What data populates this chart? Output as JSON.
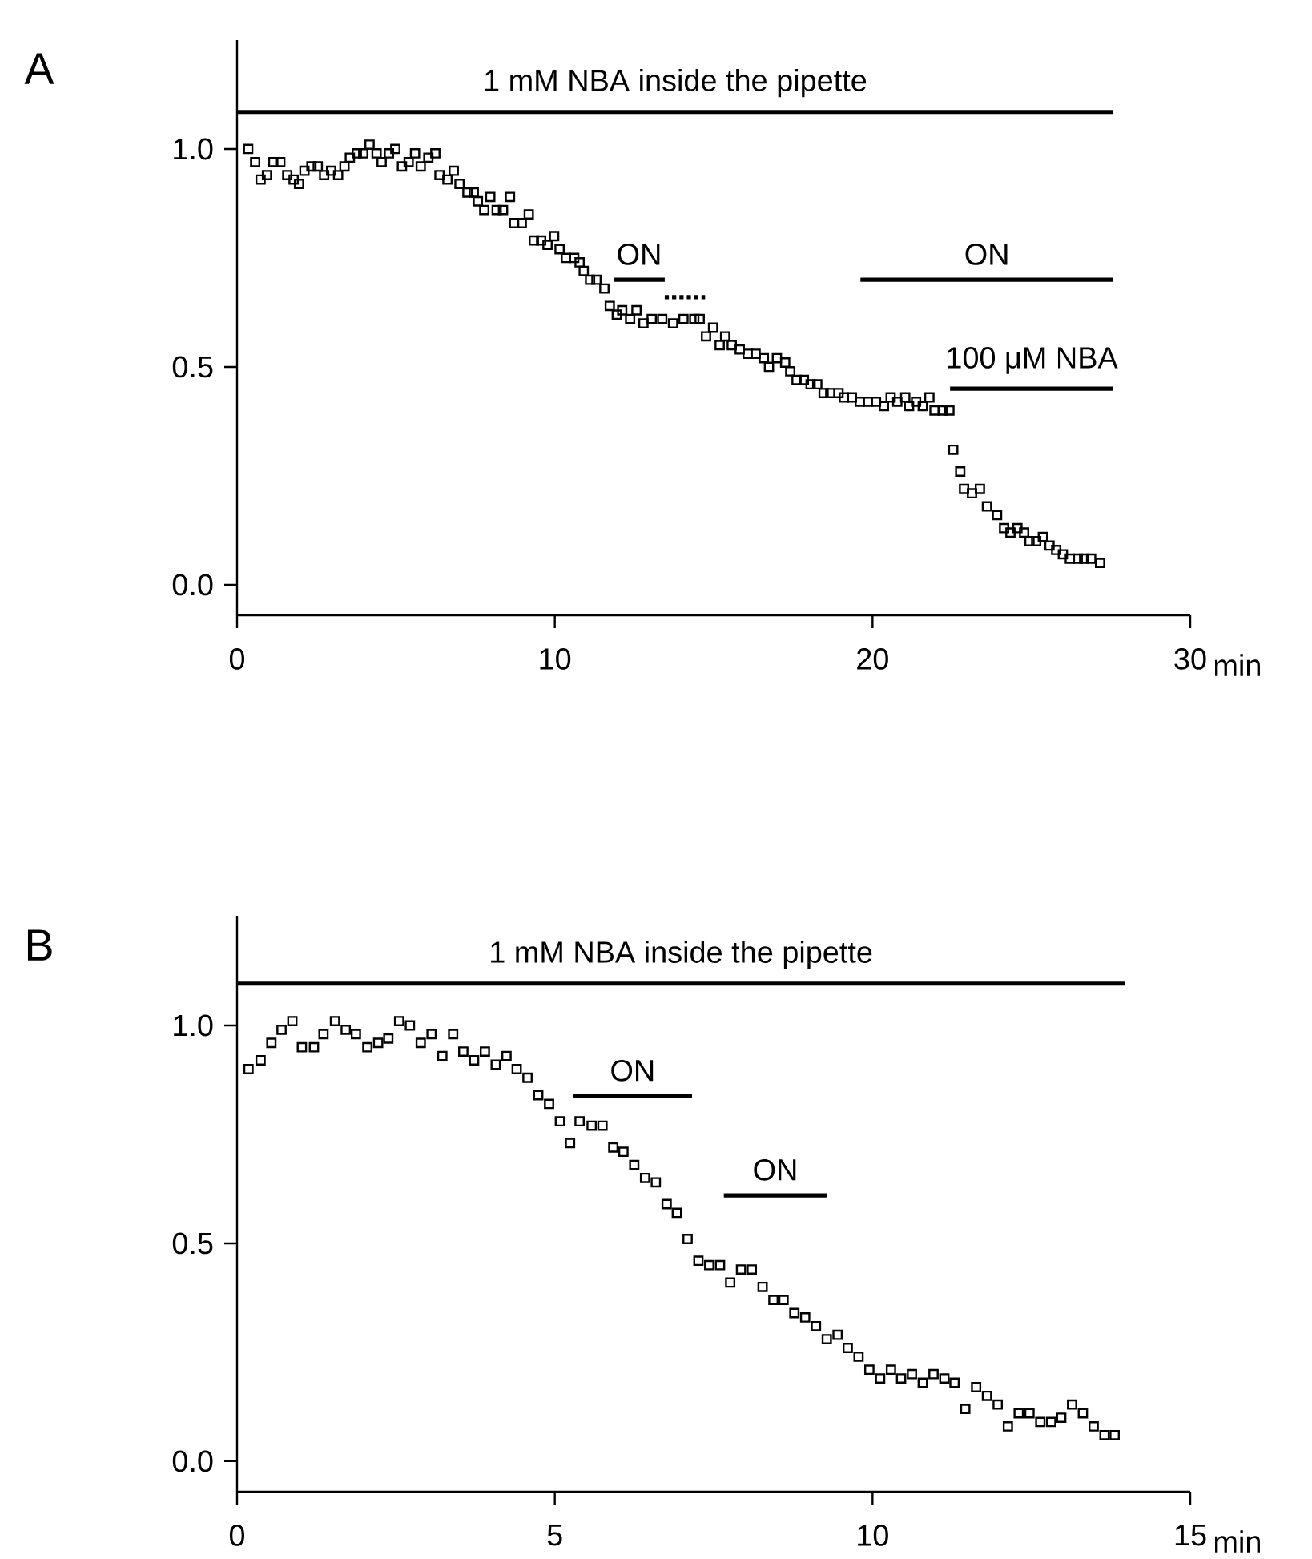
{
  "chart_data": [
    {
      "type": "scatter",
      "title": "A",
      "xlabel": "min",
      "marker": "square",
      "xlim": [
        0,
        30
      ],
      "ylim": [
        -0.07,
        1.25
      ],
      "xticks": [
        0,
        10,
        20,
        30
      ],
      "yticks": [
        {
          "value": 0,
          "label": "0.0"
        },
        {
          "value": 0.5,
          "label": "0.5"
        },
        {
          "value": 1,
          "label": "1.0"
        }
      ],
      "series": [
        {
          "color": "#000000",
          "x": [
            0.35,
            0.57,
            0.74,
            0.94,
            1.14,
            1.36,
            1.58,
            1.78,
            1.95,
            2.12,
            2.34,
            2.54,
            2.74,
            2.96,
            3.18,
            3.38,
            3.55,
            3.77,
            3.97,
            4.17,
            4.39,
            4.55,
            4.78,
            4.98,
            5.19,
            5.4,
            5.6,
            5.78,
            6.02,
            6.24,
            6.37,
            6.62,
            6.82,
            7.0,
            7.25,
            7.45,
            7.58,
            7.78,
            7.97,
            8.17,
            8.37,
            8.59,
            8.72,
            8.96,
            9.18,
            9.34,
            9.57,
            9.77,
            9.98,
            10.15,
            10.35,
            10.61,
            10.78,
            10.91,
            11.11,
            11.31,
            11.56,
            11.73,
            11.95,
            12.12,
            12.37,
            12.57,
            12.79,
            13.05,
            13.38,
            13.72,
            14.05,
            14.39,
            14.56,
            14.76,
            14.98,
            15.19,
            15.36,
            15.57,
            15.82,
            16.07,
            16.32,
            16.58,
            16.74,
            16.99,
            17.25,
            17.41,
            17.61,
            17.84,
            18.05,
            18.26,
            18.46,
            18.67,
            18.93,
            19.1,
            19.35,
            19.6,
            19.85,
            20.11,
            20.36,
            20.57,
            20.78,
            21.03,
            21.15,
            21.37,
            21.58,
            21.79,
            21.95,
            22.21,
            22.42,
            22.54,
            22.76,
            22.88,
            23.13,
            23.38,
            23.6,
            23.92,
            24.14,
            24.34,
            24.56,
            24.77,
            24.94,
            25.15,
            25.36,
            25.57,
            25.78,
            25.99,
            26.21,
            26.46,
            26.66,
            26.88,
            27.16
          ],
          "values": [
            1.0,
            0.97,
            0.93,
            0.94,
            0.97,
            0.97,
            0.94,
            0.93,
            0.92,
            0.95,
            0.96,
            0.96,
            0.94,
            0.95,
            0.94,
            0.96,
            0.98,
            0.99,
            0.99,
            1.01,
            0.99,
            0.97,
            0.99,
            1.0,
            0.96,
            0.97,
            0.99,
            0.96,
            0.98,
            0.99,
            0.94,
            0.93,
            0.95,
            0.92,
            0.9,
            0.9,
            0.88,
            0.86,
            0.89,
            0.86,
            0.86,
            0.89,
            0.83,
            0.83,
            0.85,
            0.79,
            0.79,
            0.78,
            0.8,
            0.77,
            0.75,
            0.75,
            0.74,
            0.72,
            0.7,
            0.7,
            0.68,
            0.64,
            0.62,
            0.63,
            0.61,
            0.63,
            0.6,
            0.61,
            0.61,
            0.6,
            0.61,
            0.61,
            0.61,
            0.57,
            0.59,
            0.55,
            0.57,
            0.55,
            0.54,
            0.53,
            0.53,
            0.52,
            0.5,
            0.52,
            0.51,
            0.49,
            0.47,
            0.47,
            0.46,
            0.46,
            0.44,
            0.44,
            0.44,
            0.43,
            0.43,
            0.42,
            0.42,
            0.42,
            0.41,
            0.43,
            0.42,
            0.43,
            0.41,
            0.42,
            0.41,
            0.43,
            0.4,
            0.4,
            0.4,
            0.31,
            0.26,
            0.22,
            0.21,
            0.22,
            0.18,
            0.16,
            0.13,
            0.12,
            0.13,
            0.12,
            0.1,
            0.1,
            0.11,
            0.09,
            0.08,
            0.07,
            0.06,
            0.06,
            0.06,
            0.06,
            0.05
          ]
        },
        {
          "type": "line",
          "name": "1 mM NBA inside the pipette",
          "color": "#000000",
          "marker": "none",
          "x": [
            0,
            27.58
          ],
          "values": [
            1.085,
            1.085
          ]
        },
        {
          "type": "line",
          "name": "ON",
          "color": "#000000",
          "marker": "none",
          "x": [
            11.85,
            13.46
          ],
          "values": [
            0.7,
            0.7
          ]
        },
        {
          "type": "line",
          "color": "#000000",
          "marker": "none",
          "line_style": "dotted",
          "x": [
            13.46,
            14.73
          ],
          "values": [
            0.66,
            0.66
          ]
        },
        {
          "type": "line",
          "name": "ON",
          "color": "#000000",
          "marker": "none",
          "x": [
            19.62,
            27.58
          ],
          "values": [
            0.7,
            0.7
          ]
        },
        {
          "type": "line",
          "name": "100 μM NBA",
          "color": "#000000",
          "marker": "none",
          "x": [
            22.44,
            27.58
          ],
          "values": [
            0.45,
            0.45
          ]
        }
      ]
    },
    {
      "type": "scatter",
      "title": "B",
      "xlabel": "min",
      "marker": "square",
      "xlim": [
        0,
        15
      ],
      "ylim": [
        -0.07,
        1.25
      ],
      "xticks": [
        0,
        5,
        10,
        15
      ],
      "yticks": [
        {
          "value": 0,
          "label": "0.0"
        },
        {
          "value": 0.5,
          "label": "0.5"
        },
        {
          "value": 1,
          "label": "1.0"
        }
      ],
      "series": [
        {
          "color": "#000000",
          "x": [
            0.18,
            0.37,
            0.54,
            0.7,
            0.87,
            1.02,
            1.21,
            1.36,
            1.54,
            1.71,
            1.87,
            2.05,
            2.22,
            2.38,
            2.55,
            2.72,
            2.89,
            3.06,
            3.23,
            3.4,
            3.56,
            3.73,
            3.9,
            4.07,
            4.24,
            4.4,
            4.57,
            4.74,
            4.91,
            5.08,
            5.24,
            5.39,
            5.58,
            5.75,
            5.92,
            6.08,
            6.25,
            6.42,
            6.59,
            6.76,
            6.92,
            7.09,
            7.26,
            7.43,
            7.6,
            7.76,
            7.93,
            8.1,
            8.27,
            8.44,
            8.6,
            8.77,
            8.94,
            9.11,
            9.28,
            9.45,
            9.61,
            9.78,
            9.95,
            10.12,
            10.29,
            10.45,
            10.62,
            10.79,
            10.96,
            11.13,
            11.29,
            11.46,
            11.63,
            11.8,
            11.97,
            12.13,
            12.3,
            12.47,
            12.64,
            12.81,
            12.97,
            13.14,
            13.31,
            13.48,
            13.65,
            13.81
          ],
          "values": [
            0.9,
            0.92,
            0.96,
            0.99,
            1.01,
            0.95,
            0.95,
            0.98,
            1.01,
            0.99,
            0.98,
            0.95,
            0.96,
            0.97,
            1.01,
            1.0,
            0.96,
            0.98,
            0.93,
            0.98,
            0.94,
            0.92,
            0.94,
            0.91,
            0.93,
            0.9,
            0.88,
            0.84,
            0.82,
            0.78,
            0.73,
            0.78,
            0.77,
            0.77,
            0.72,
            0.71,
            0.68,
            0.65,
            0.64,
            0.59,
            0.57,
            0.51,
            0.46,
            0.45,
            0.45,
            0.41,
            0.44,
            0.44,
            0.4,
            0.37,
            0.37,
            0.34,
            0.33,
            0.31,
            0.28,
            0.29,
            0.26,
            0.24,
            0.21,
            0.19,
            0.21,
            0.19,
            0.2,
            0.18,
            0.2,
            0.19,
            0.18,
            0.12,
            0.17,
            0.15,
            0.13,
            0.08,
            0.11,
            0.11,
            0.09,
            0.09,
            0.1,
            0.13,
            0.11,
            0.08,
            0.06,
            0.06
          ]
        },
        {
          "type": "line",
          "name": "1 mM NBA inside the pipette",
          "color": "#000000",
          "marker": "none",
          "x": [
            0,
            13.97
          ],
          "values": [
            1.096,
            1.096
          ]
        },
        {
          "type": "line",
          "name": "ON",
          "color": "#000000",
          "marker": "none",
          "x": [
            5.29,
            7.16
          ],
          "values": [
            0.838,
            0.838
          ]
        },
        {
          "type": "line",
          "name": "ON",
          "color": "#000000",
          "marker": "none",
          "x": [
            7.66,
            9.28
          ],
          "values": [
            0.61,
            0.61
          ]
        }
      ]
    }
  ]
}
